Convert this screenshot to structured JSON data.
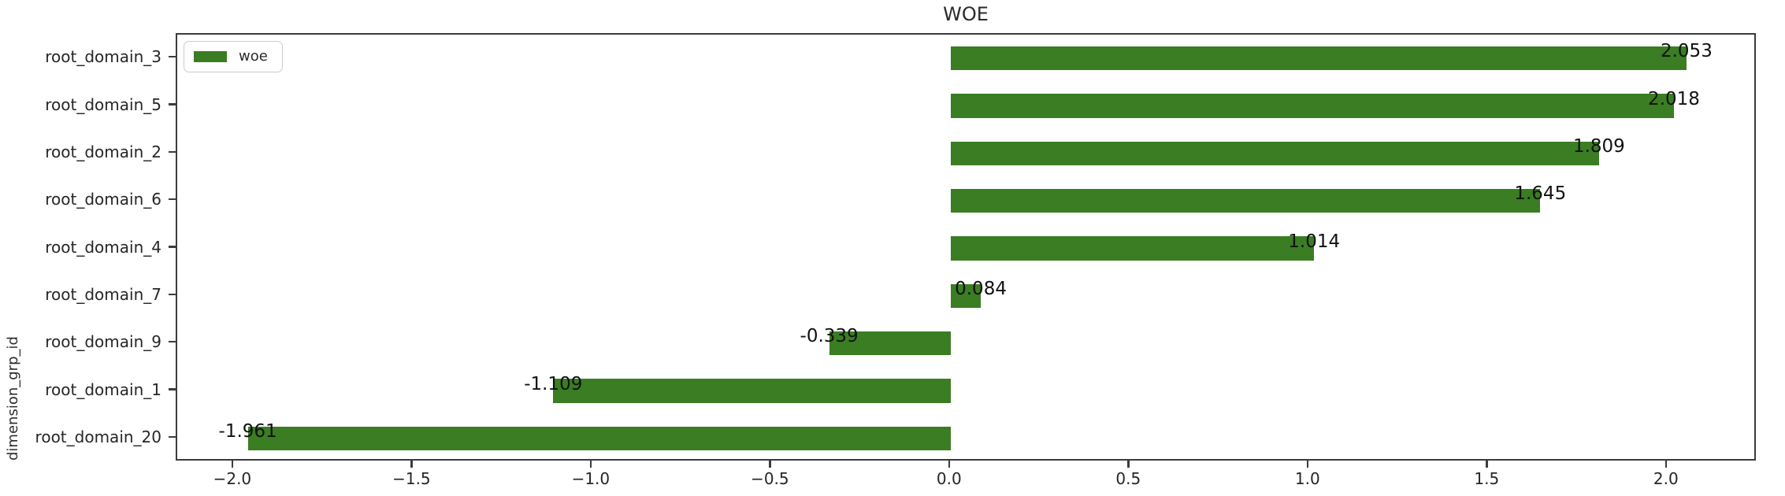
{
  "chart_data": {
    "type": "bar",
    "orientation": "horizontal",
    "title": "WOE",
    "xlabel": "",
    "ylabel": "dimension_grp_id",
    "grid": false,
    "legend": {
      "label": "woe",
      "position": "upper-left"
    },
    "bar_color": "#3a7d22",
    "categories": [
      "root_domain_3",
      "root_domain_5",
      "root_domain_2",
      "root_domain_6",
      "root_domain_4",
      "root_domain_7",
      "root_domain_9",
      "root_domain_1",
      "root_domain_20"
    ],
    "values": [
      2.053,
      2.018,
      1.809,
      1.645,
      1.014,
      0.084,
      -0.339,
      -1.109,
      -1.961
    ],
    "value_labels": [
      "2.053",
      "2.018",
      "1.809",
      "1.645",
      "1.014",
      "0.084",
      "-0.339",
      "-1.109",
      "-1.961"
    ],
    "series": [
      {
        "name": "woe",
        "values": [
          2.053,
          2.018,
          1.809,
          1.645,
          1.014,
          0.084,
          -0.339,
          -1.109,
          -1.961
        ]
      }
    ],
    "xlim": [
      -2.158,
      2.251
    ],
    "x_ticks": [
      -2.0,
      -1.5,
      -1.0,
      -0.5,
      0.0,
      0.5,
      1.0,
      1.5,
      2.0
    ],
    "x_tick_labels": [
      "−2.0",
      "−1.5",
      "−1.0",
      "−0.5",
      "0.0",
      "0.5",
      "1.0",
      "1.5",
      "2.0"
    ],
    "bar_band_ratio": 0.5
  }
}
